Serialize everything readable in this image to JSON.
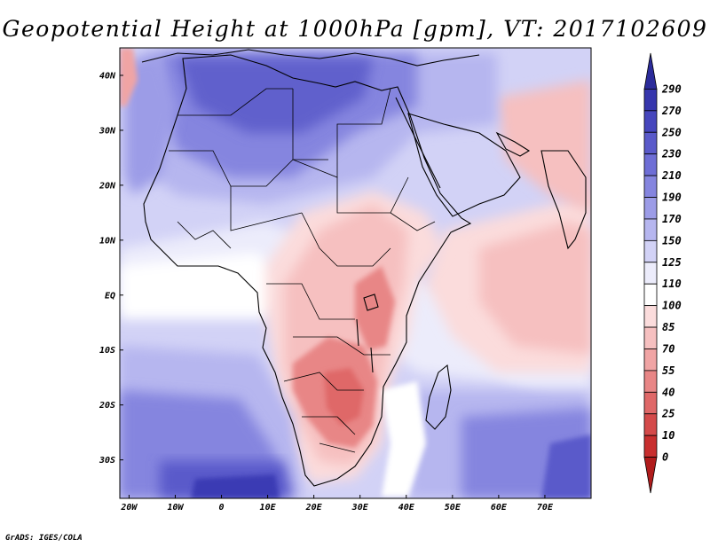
{
  "title": "Geopotential Height at 1000hPa [gpm], VT: 2017102609",
  "credit": "GrADS: IGES/COLA",
  "map": {
    "variable": "Geopotential Height at 1000hPa",
    "units": "gpm",
    "valid_time": "2017102609",
    "region": "Africa",
    "lon_range": [
      -22,
      80
    ],
    "lat_range": [
      -37,
      45
    ],
    "lat_ticks": [
      {
        "value": 40,
        "label": "40N"
      },
      {
        "value": 30,
        "label": "30N"
      },
      {
        "value": 20,
        "label": "20N"
      },
      {
        "value": 10,
        "label": "10N"
      },
      {
        "value": 0,
        "label": "EQ"
      },
      {
        "value": -10,
        "label": "10S"
      },
      {
        "value": -20,
        "label": "20S"
      },
      {
        "value": -30,
        "label": "30S"
      }
    ],
    "lon_ticks": [
      {
        "value": -20,
        "label": "20W"
      },
      {
        "value": -10,
        "label": "10W"
      },
      {
        "value": 0,
        "label": "0"
      },
      {
        "value": 10,
        "label": "10E"
      },
      {
        "value": 20,
        "label": "20E"
      },
      {
        "value": 30,
        "label": "30E"
      },
      {
        "value": 40,
        "label": "40E"
      },
      {
        "value": 50,
        "label": "50E"
      },
      {
        "value": 60,
        "label": "60E"
      },
      {
        "value": 70,
        "label": "70E"
      }
    ]
  },
  "colorbar": {
    "labels": [
      "290",
      "270",
      "250",
      "230",
      "210",
      "190",
      "170",
      "150",
      "125",
      "110",
      "100",
      "85",
      "70",
      "55",
      "40",
      "25",
      "10",
      "0"
    ],
    "colors": [
      "#2b2b9a",
      "#3636ad",
      "#4646bd",
      "#5a5aca",
      "#6e6ed6",
      "#8585df",
      "#9c9ce7",
      "#b6b6ef",
      "#d2d2f6",
      "#ececfb",
      "#ffffff",
      "#fbdcdc",
      "#f6c0c0",
      "#f0a4a4",
      "#e88686",
      "#df6868",
      "#d44a4a",
      "#c82f2f",
      "#b01c1c"
    ]
  },
  "fields": {
    "ocean_color": "#d2d2f6",
    "deep_blue": "#3a3ab4",
    "mid_blue": "#7a7ad8",
    "low_red": "#e88686",
    "pale_red": "#f6c0c0",
    "white": "#ffffff"
  }
}
